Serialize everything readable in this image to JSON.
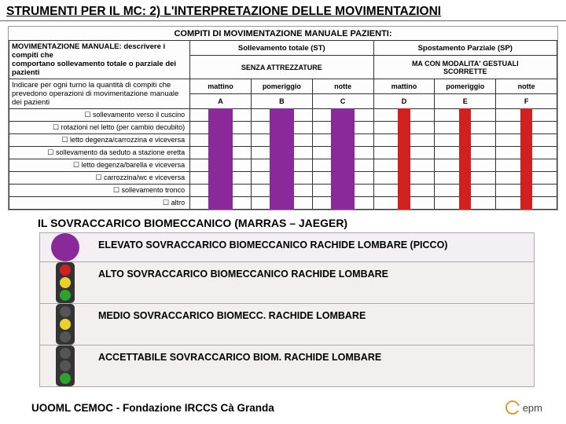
{
  "slide_title": "STRUMENTI PER IL MC: 2) L'INTERPRETAZIONE DELLE MOVIMENTAZIONI",
  "panel": {
    "title": "COMPITI DI MOVIMENTAZIONE MANUALE PAZIENTI:",
    "left_header_1": "MOVIMENTAZIONE MANUALE: descrivere i compiti che",
    "left_header_2": "comportano sollevamento totale o parziale dei pazienti",
    "left_header_3": "Indicare per ogni turno la quantità di compiti che prevedono operazioni di movimentazione manuale dei pazienti",
    "group_st": "Sollevamento totale (ST)",
    "group_st_sub": "SENZA ATTREZZATURE",
    "group_sp": "Spostamento Parziale (SP)",
    "group_sp_sub1": "MA CON MODALITA' GESTUALI",
    "group_sp_sub2": "SCORRETTE",
    "shifts": [
      "mattino",
      "pomeriggio",
      "notte",
      "mattino",
      "pomeriggio",
      "notte"
    ],
    "col_letters": [
      "A",
      "B",
      "C",
      "D",
      "E",
      "F"
    ],
    "rows": [
      "☐ sollevamento verso il cuscino",
      "☐ rotazioni nel letto (per cambio decubito)",
      "☐ letto degenza/carrozzina e viceversa",
      "☐ sollevamento da seduto a stazione eretta",
      "☐ letto degenza/barella e viceversa",
      "☐ carrozzina/wc e viceversa",
      "☐ sollevamento tronco",
      "☐ altro"
    ],
    "colors": {
      "purple": "#8a2a9a",
      "red": "#d02020"
    },
    "column_bar_types": [
      "wide",
      "wide",
      "wide",
      "narrow",
      "narrow",
      "narrow"
    ],
    "column_bar_colors": [
      "purple",
      "purple",
      "purple",
      "red",
      "red",
      "red"
    ]
  },
  "subtitle": "IL SOVRACCARICO BIOMECCANICO (MARRAS – JAEGER)",
  "legend": {
    "purple_circle": "#8a2a9a",
    "rows": [
      {
        "text": "ELEVATO SOVRACCARICO BIOMECCANICO RACHIDE LOMBARE (PICCO)"
      },
      {
        "text": "ALTO SOVRACCARICO BIOMECCANICO RACHIDE LOMBARE"
      },
      {
        "text": "MEDIO SOVRACCARICO BIOMECC. RACHIDE LOMBARE"
      },
      {
        "text": "ACCETTABILE SOVRACCARICO BIOM. RACHIDE LOMBARE"
      }
    ],
    "traffic_colors": {
      "red": "#d02020",
      "yellow": "#e8d030",
      "green": "#30a030",
      "off": "#555"
    }
  },
  "footer": {
    "text": "UOOML CEMOC - Fondazione IRCCS Cà Granda",
    "logo_text": "epm"
  }
}
